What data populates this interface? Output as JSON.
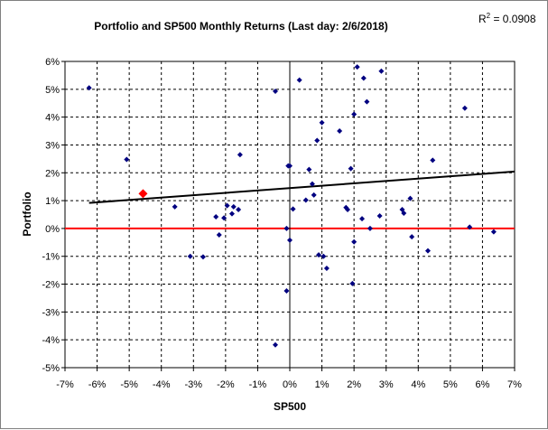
{
  "chart_data": {
    "type": "scatter",
    "title": "Portfolio and SP500 Monthly Returns (Last day: 2/6/2018)",
    "xlabel": "SP500",
    "ylabel": "Portfolio",
    "r2_label": "R",
    "r2_exponent": "2",
    "r2_value": " = 0.0908",
    "xlim": [
      -0.07,
      0.07
    ],
    "ylim": [
      -0.05,
      0.06
    ],
    "x_ticks": [
      "-7%",
      "-6%",
      "-5%",
      "-4%",
      "-3%",
      "-2%",
      "-1%",
      "0%",
      "1%",
      "2%",
      "3%",
      "4%",
      "5%",
      "6%",
      "7%"
    ],
    "x_tick_values": [
      -0.07,
      -0.06,
      -0.05,
      -0.04,
      -0.03,
      -0.02,
      -0.01,
      0,
      0.01,
      0.02,
      0.03,
      0.04,
      0.05,
      0.06,
      0.07
    ],
    "y_ticks": [
      "6%",
      "5%",
      "4%",
      "3%",
      "2%",
      "1%",
      "0%",
      "-1%",
      "-2%",
      "-3%",
      "-4%",
      "-5%"
    ],
    "y_tick_values": [
      0.06,
      0.05,
      0.04,
      0.03,
      0.02,
      0.01,
      0,
      -0.01,
      -0.02,
      -0.03,
      -0.04,
      -0.05
    ],
    "grid": true,
    "marker_color": "#000080",
    "highlight_color": "#ff0000",
    "trendline_color": "#000000",
    "zero_line_color": "#ff0000",
    "trendline": {
      "slope": 0.085,
      "intercept": 0.0145
    },
    "highlight_point": {
      "x": -0.0457,
      "y": 0.0125
    },
    "points": [
      {
        "x": -0.0625,
        "y": 0.0505
      },
      {
        "x": -0.0508,
        "y": 0.0248
      },
      {
        "x": -0.0358,
        "y": 0.0078
      },
      {
        "x": -0.031,
        "y": -0.01
      },
      {
        "x": -0.027,
        "y": -0.0102
      },
      {
        "x": -0.023,
        "y": 0.0042
      },
      {
        "x": -0.022,
        "y": -0.0023
      },
      {
        "x": -0.0205,
        "y": 0.0038
      },
      {
        "x": -0.0195,
        "y": 0.0082
      },
      {
        "x": -0.018,
        "y": 0.0053
      },
      {
        "x": -0.0175,
        "y": 0.0078
      },
      {
        "x": -0.016,
        "y": 0.0068
      },
      {
        "x": -0.0155,
        "y": 0.0265
      },
      {
        "x": -0.0045,
        "y": 0.0493
      },
      {
        "x": -0.0045,
        "y": -0.0418
      },
      {
        "x": -0.001,
        "y": -0.0224
      },
      {
        "x": -0.001,
        "y": 0.0
      },
      {
        "x": -0.0005,
        "y": 0.0225
      },
      {
        "x": 0.0,
        "y": 0.0225
      },
      {
        "x": 0.0,
        "y": -0.0042
      },
      {
        "x": 0.001,
        "y": 0.007
      },
      {
        "x": 0.003,
        "y": 0.0533
      },
      {
        "x": 0.005,
        "y": 0.0102
      },
      {
        "x": 0.006,
        "y": 0.0212
      },
      {
        "x": 0.007,
        "y": 0.016
      },
      {
        "x": 0.0075,
        "y": 0.012
      },
      {
        "x": 0.0085,
        "y": 0.0316
      },
      {
        "x": 0.009,
        "y": -0.0095
      },
      {
        "x": 0.01,
        "y": 0.038
      },
      {
        "x": 0.0105,
        "y": -0.01
      },
      {
        "x": 0.0115,
        "y": -0.0143
      },
      {
        "x": 0.0155,
        "y": 0.035
      },
      {
        "x": 0.0175,
        "y": 0.0075
      },
      {
        "x": 0.018,
        "y": 0.0068
      },
      {
        "x": 0.019,
        "y": 0.0215
      },
      {
        "x": 0.0195,
        "y": -0.0198
      },
      {
        "x": 0.02,
        "y": -0.0048
      },
      {
        "x": 0.02,
        "y": 0.041
      },
      {
        "x": 0.021,
        "y": 0.058
      },
      {
        "x": 0.0225,
        "y": 0.0035
      },
      {
        "x": 0.023,
        "y": 0.054
      },
      {
        "x": 0.024,
        "y": 0.0455
      },
      {
        "x": 0.025,
        "y": 0.0
      },
      {
        "x": 0.028,
        "y": 0.0045
      },
      {
        "x": 0.0285,
        "y": 0.0565
      },
      {
        "x": 0.035,
        "y": 0.0068
      },
      {
        "x": 0.0355,
        "y": 0.0055
      },
      {
        "x": 0.0375,
        "y": 0.0108
      },
      {
        "x": 0.038,
        "y": -0.003
      },
      {
        "x": 0.043,
        "y": -0.008
      },
      {
        "x": 0.0445,
        "y": 0.0245
      },
      {
        "x": 0.0545,
        "y": 0.0432
      },
      {
        "x": 0.056,
        "y": 0.0005
      },
      {
        "x": 0.0635,
        "y": -0.0012
      }
    ]
  }
}
